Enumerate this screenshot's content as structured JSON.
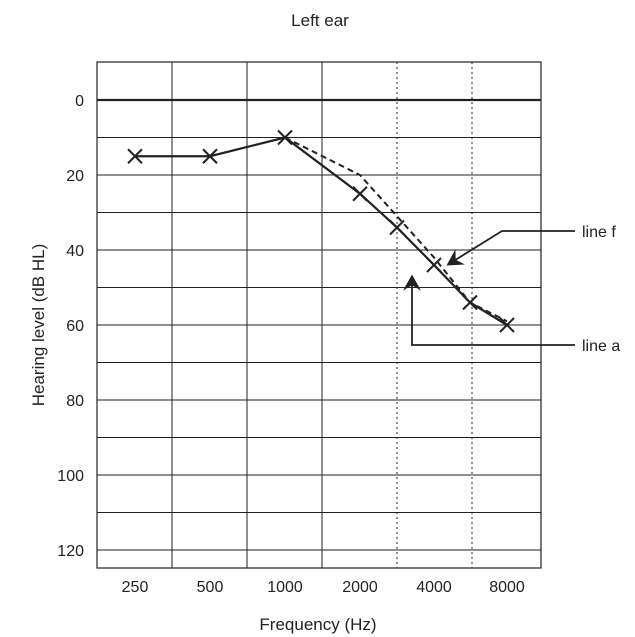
{
  "chart_data": {
    "type": "line",
    "title": "Left ear",
    "xlabel": "Frequency (Hz)",
    "ylabel": "Hearing level (dB HL)",
    "x_categories": [
      "250",
      "500",
      "1000",
      "2000",
      "4000",
      "8000"
    ],
    "x_intermediate": [
      "3000",
      "6000"
    ],
    "y_ticks": [
      0,
      20,
      40,
      60,
      80,
      100,
      120
    ],
    "ylim": [
      -10,
      125
    ],
    "y_inverted": true,
    "grid": true,
    "series": [
      {
        "kind": "solid-with-markers",
        "marker": "x",
        "points": [
          {
            "x": "250",
            "y": 15
          },
          {
            "x": "500",
            "y": 15
          },
          {
            "x": "1000",
            "y": 10
          },
          {
            "x": "2000",
            "y": 25
          },
          {
            "x": "3000",
            "y": 34
          },
          {
            "x": "4000",
            "y": 44
          },
          {
            "x": "6000",
            "y": 54
          },
          {
            "x": "8000",
            "y": 60
          }
        ]
      },
      {
        "kind": "dashed",
        "points": [
          {
            "x": "1000",
            "y": 10
          },
          {
            "x": "2000",
            "y": 20
          },
          {
            "x": "3000",
            "y": 31
          },
          {
            "x": "4000",
            "y": 42
          },
          {
            "x": "6000",
            "y": 54
          },
          {
            "x": "8000",
            "y": 59
          }
        ]
      }
    ],
    "annotations": [
      {
        "text": "line f",
        "points_to": {
          "x": "4000",
          "y": 46
        }
      },
      {
        "text": "line a",
        "points_to": {
          "x": "3000",
          "y": 43
        }
      }
    ],
    "colors": {
      "ink": "#222222",
      "background": "#ffffff"
    }
  }
}
